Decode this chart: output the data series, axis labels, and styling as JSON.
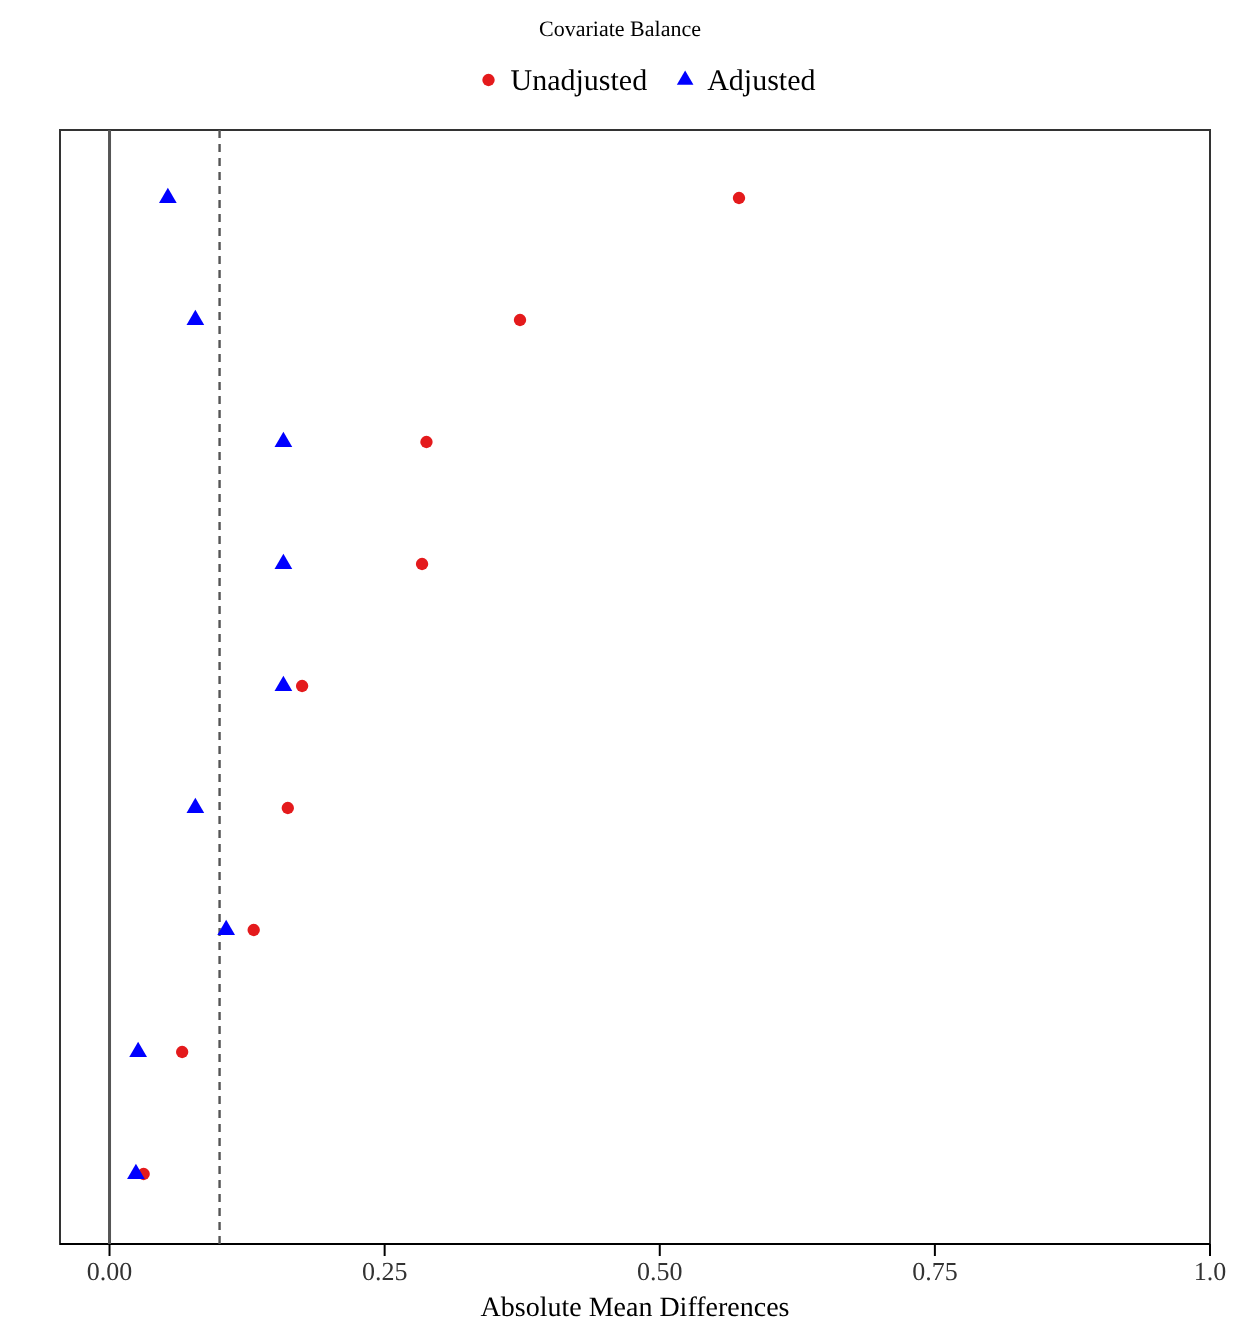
{
  "chart_data": {
    "type": "scatter",
    "title": "Covariate Balance",
    "xlabel": "Absolute Mean Differences",
    "orientation": "horizontal",
    "categories": [
      null,
      null,
      null,
      null,
      null,
      null,
      null,
      null,
      null
    ],
    "series": [
      {
        "name": "Unadjusted",
        "color": "#e41a1c",
        "marker": "circle",
        "values": [
          0.572,
          0.373,
          0.288,
          0.284,
          0.175,
          0.162,
          0.131,
          0.066,
          0.031
        ]
      },
      {
        "name": "Adjusted",
        "color": "#0000ff",
        "marker": "triangle",
        "values": [
          0.053,
          0.078,
          0.158,
          0.158,
          0.158,
          0.078,
          0.106,
          0.026,
          0.024
        ]
      }
    ],
    "xlim": [
      -0.045,
      1.0
    ],
    "xticks": [
      {
        "value": 0,
        "label": "0.00"
      },
      {
        "value": 0.25,
        "label": "0.25"
      },
      {
        "value": 0.5,
        "label": "0.50"
      },
      {
        "value": 0.75,
        "label": "0.75"
      },
      {
        "value": 1,
        "label": "1.0"
      }
    ],
    "ref_lines": [
      {
        "axis": "x",
        "value": 0,
        "color": "#555555",
        "line_style": "solid"
      },
      {
        "axis": "x",
        "value": 0.1,
        "color": "#555555",
        "line_style": "dashed"
      }
    ],
    "legend": "top",
    "tick_labels": "x",
    "grid": false
  }
}
